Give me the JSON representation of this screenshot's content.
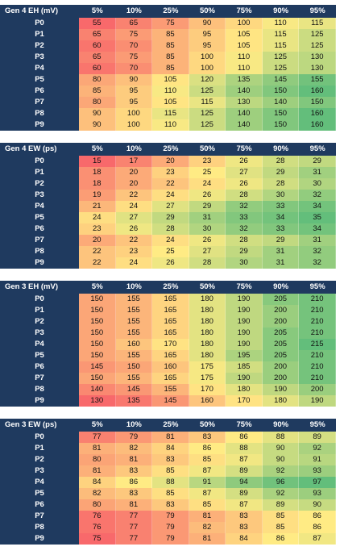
{
  "chart_data": [
    {
      "type": "heatmap",
      "title": "Gen 4 EH (mV)",
      "columns": [
        "5%",
        "10%",
        "25%",
        "50%",
        "75%",
        "90%",
        "95%"
      ],
      "rows": [
        "P0",
        "P1",
        "P2",
        "P3",
        "P4",
        "P5",
        "P6",
        "P7",
        "P8",
        "P9"
      ],
      "values": [
        [
          55,
          65,
          75,
          90,
          100,
          110,
          115
        ],
        [
          65,
          75,
          85,
          95,
          105,
          115,
          125
        ],
        [
          60,
          70,
          85,
          95,
          105,
          115,
          125
        ],
        [
          65,
          75,
          85,
          100,
          110,
          125,
          130
        ],
        [
          60,
          70,
          85,
          100,
          110,
          125,
          130
        ],
        [
          80,
          90,
          105,
          120,
          135,
          145,
          155
        ],
        [
          85,
          95,
          110,
          125,
          140,
          150,
          160
        ],
        [
          80,
          95,
          105,
          115,
          130,
          140,
          150
        ],
        [
          90,
          100,
          115,
          125,
          140,
          150,
          160
        ],
        [
          90,
          100,
          110,
          125,
          140,
          150,
          160
        ]
      ]
    },
    {
      "type": "heatmap",
      "title": "Gen 4 EW (ps)",
      "columns": [
        "5%",
        "10%",
        "25%",
        "50%",
        "75%",
        "90%",
        "95%"
      ],
      "rows": [
        "P0",
        "P1",
        "P2",
        "P3",
        "P4",
        "P5",
        "P6",
        "P7",
        "P8",
        "P9"
      ],
      "values": [
        [
          15,
          17,
          20,
          23,
          26,
          28,
          29
        ],
        [
          18,
          20,
          23,
          25,
          27,
          29,
          31
        ],
        [
          18,
          20,
          22,
          24,
          26,
          28,
          30
        ],
        [
          19,
          22,
          24,
          26,
          28,
          30,
          32
        ],
        [
          21,
          24,
          27,
          29,
          32,
          33,
          34
        ],
        [
          24,
          27,
          29,
          31,
          33,
          34,
          35
        ],
        [
          23,
          26,
          28,
          30,
          32,
          33,
          34
        ],
        [
          20,
          22,
          24,
          26,
          28,
          29,
          31
        ],
        [
          22,
          23,
          25,
          27,
          29,
          31,
          32
        ],
        [
          22,
          24,
          26,
          28,
          30,
          31,
          32
        ]
      ]
    },
    {
      "type": "heatmap",
      "title": "Gen 3 EH (mV)",
      "columns": [
        "5%",
        "10%",
        "25%",
        "50%",
        "75%",
        "90%",
        "95%"
      ],
      "rows": [
        "P0",
        "P1",
        "P2",
        "P3",
        "P4",
        "P5",
        "P6",
        "P7",
        "P8",
        "P9"
      ],
      "values": [
        [
          150,
          155,
          165,
          180,
          190,
          205,
          210
        ],
        [
          150,
          155,
          165,
          180,
          190,
          200,
          210
        ],
        [
          150,
          155,
          165,
          180,
          190,
          200,
          210
        ],
        [
          150,
          155,
          165,
          180,
          190,
          205,
          210
        ],
        [
          150,
          160,
          170,
          180,
          190,
          205,
          215
        ],
        [
          150,
          155,
          165,
          180,
          195,
          205,
          210
        ],
        [
          145,
          150,
          160,
          175,
          185,
          200,
          210
        ],
        [
          150,
          155,
          165,
          175,
          190,
          200,
          210
        ],
        [
          140,
          145,
          155,
          170,
          180,
          190,
          200
        ],
        [
          130,
          135,
          145,
          160,
          170,
          180,
          190
        ]
      ]
    },
    {
      "type": "heatmap",
      "title": "Gen 3 EW (ps)",
      "columns": [
        "5%",
        "10%",
        "25%",
        "50%",
        "75%",
        "90%",
        "95%"
      ],
      "rows": [
        "P0",
        "P1",
        "P2",
        "P3",
        "P4",
        "P5",
        "P6",
        "P7",
        "P8",
        "P9"
      ],
      "values": [
        [
          77,
          79,
          81,
          83,
          86,
          88,
          89
        ],
        [
          81,
          82,
          84,
          86,
          88,
          90,
          92
        ],
        [
          80,
          81,
          83,
          85,
          87,
          90,
          91
        ],
        [
          81,
          83,
          85,
          87,
          89,
          92,
          93
        ],
        [
          84,
          86,
          88,
          91,
          94,
          96,
          97
        ],
        [
          82,
          83,
          85,
          87,
          89,
          92,
          93
        ],
        [
          80,
          81,
          83,
          85,
          87,
          89,
          90
        ],
        [
          76,
          77,
          79,
          81,
          83,
          85,
          86
        ],
        [
          76,
          77,
          79,
          82,
          83,
          85,
          86
        ],
        [
          75,
          77,
          79,
          81,
          84,
          86,
          87
        ]
      ]
    }
  ],
  "colors": {
    "header": "#1f3a5f",
    "low": "#f8696b",
    "mid": "#ffeb84",
    "high": "#63be7b"
  }
}
